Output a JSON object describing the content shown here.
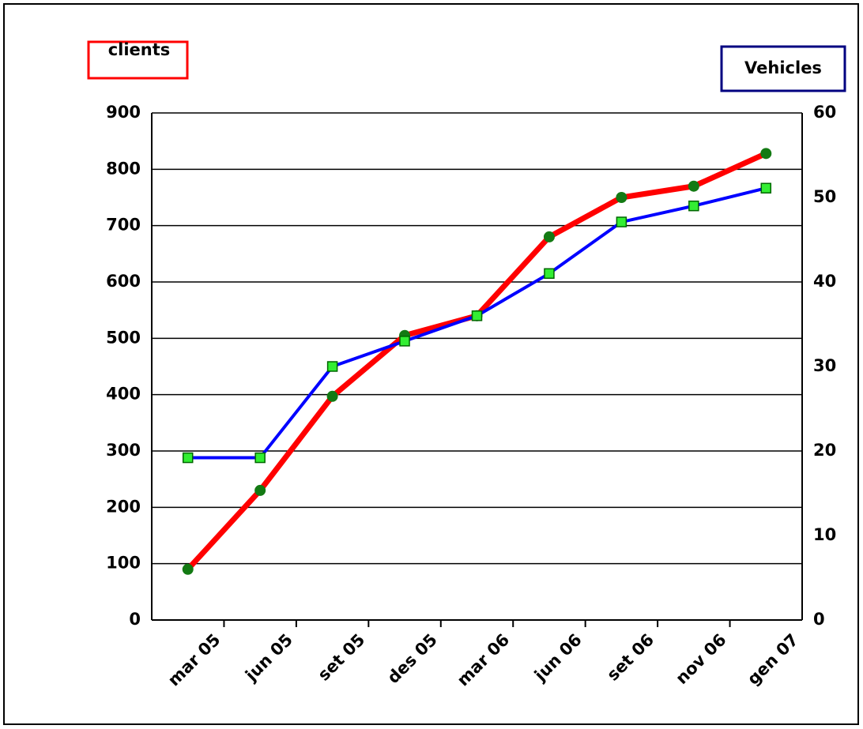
{
  "chart_data": {
    "type": "line",
    "categories": [
      "mar 05",
      "jun 05",
      "set 05",
      "des 05",
      "mar 06",
      "jun 06",
      "set 06",
      "nov 06",
      "gen 07"
    ],
    "series": [
      {
        "name": "clients",
        "color": "#ff0000",
        "marker_color": "#137a13",
        "marker": "circle",
        "values": [
          90,
          230,
          397,
          505,
          540,
          680,
          750,
          770,
          828
        ]
      },
      {
        "name": "Vehicles",
        "color": "#0000ff",
        "marker_color": "#33ee33",
        "marker": "square",
        "axis": "y2",
        "values": [
          19.2,
          19.2,
          30,
          33,
          36,
          41,
          47.1,
          49,
          51.1
        ]
      }
    ],
    "ylim": [
      0,
      900
    ],
    "yticks": [
      0,
      100,
      200,
      300,
      400,
      500,
      600,
      700,
      800,
      900
    ],
    "y2lim": [
      0,
      60
    ],
    "y2ticks": [
      0,
      10,
      20,
      30,
      40,
      50,
      60
    ],
    "grid": true
  }
}
